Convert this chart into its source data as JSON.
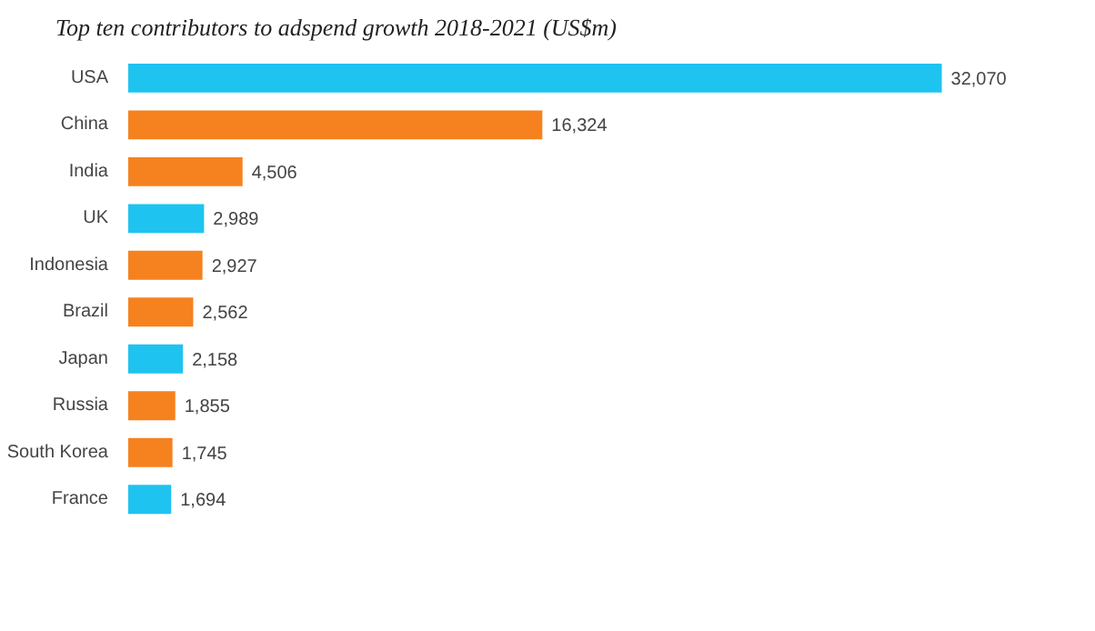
{
  "chart_data": {
    "type": "bar",
    "orientation": "horizontal",
    "title": "Top ten contributors to adspend growth 2018-2021 (US$m)",
    "categories": [
      "USA",
      "China",
      "India",
      "UK",
      "Indonesia",
      "Brazil",
      "Japan",
      "Russia",
      "South Korea",
      "France"
    ],
    "values": [
      32070,
      16324,
      4506,
      2989,
      2927,
      2562,
      2158,
      1855,
      1745,
      1694
    ],
    "colors": [
      "#1fc3f0",
      "#f5821f",
      "#f5821f",
      "#1fc3f0",
      "#f5821f",
      "#f5821f",
      "#1fc3f0",
      "#f5821f",
      "#f5821f",
      "#1fc3f0"
    ],
    "value_labels": [
      "32,070",
      "16,324",
      "4,506",
      "2,989",
      "2,927",
      "2,562",
      "2,158",
      "1,855",
      "1,745",
      "1,694"
    ],
    "grid": false
  }
}
